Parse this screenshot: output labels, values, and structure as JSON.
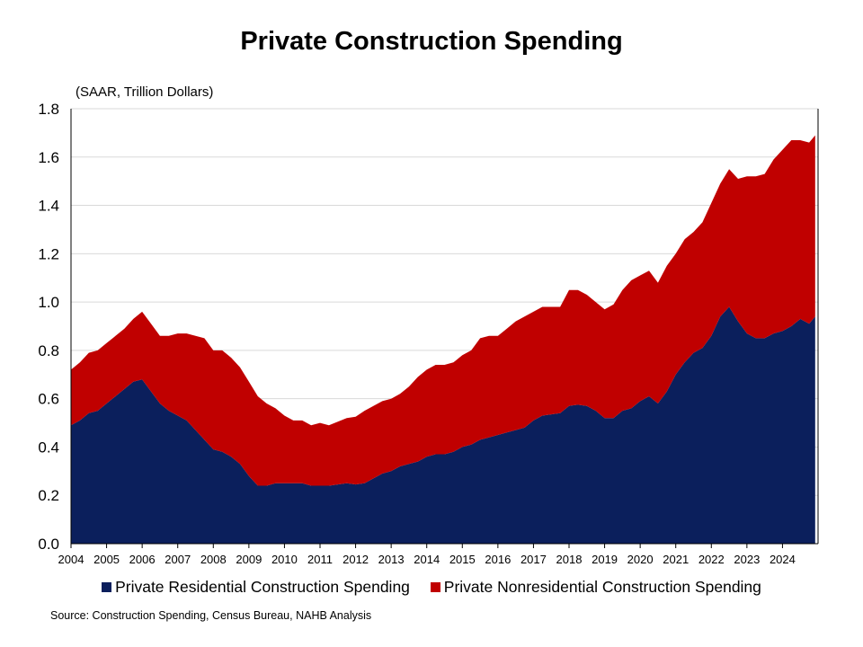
{
  "chart_data": {
    "type": "area",
    "stacked": true,
    "title": "Private Construction Spending",
    "ylabel": "(SAAR, Trillion Dollars)",
    "ylim": [
      0,
      1.8
    ],
    "yticks": [
      "0.0",
      "0.2",
      "0.4",
      "0.6",
      "0.8",
      "1.0",
      "1.2",
      "1.4",
      "1.6",
      "1.8"
    ],
    "xticks": [
      "2004",
      "2005",
      "2006",
      "2007",
      "2008",
      "2009",
      "2010",
      "2011",
      "2012",
      "2013",
      "2014",
      "2015",
      "2016",
      "2017",
      "2018",
      "2019",
      "2020",
      "2021",
      "2022",
      "2023",
      "2024"
    ],
    "grid": true,
    "legend_position": "bottom",
    "x": [
      2004.0,
      2004.25,
      2004.5,
      2004.75,
      2005.0,
      2005.25,
      2005.5,
      2005.75,
      2006.0,
      2006.25,
      2006.5,
      2006.75,
      2007.0,
      2007.25,
      2007.5,
      2007.75,
      2008.0,
      2008.25,
      2008.5,
      2008.75,
      2009.0,
      2009.25,
      2009.5,
      2009.75,
      2010.0,
      2010.25,
      2010.5,
      2010.75,
      2011.0,
      2011.25,
      2011.5,
      2011.75,
      2012.0,
      2012.25,
      2012.5,
      2012.75,
      2013.0,
      2013.25,
      2013.5,
      2013.75,
      2014.0,
      2014.25,
      2014.5,
      2014.75,
      2015.0,
      2015.25,
      2015.5,
      2015.75,
      2016.0,
      2016.25,
      2016.5,
      2016.75,
      2017.0,
      2017.25,
      2017.5,
      2017.75,
      2018.0,
      2018.25,
      2018.5,
      2018.75,
      2019.0,
      2019.25,
      2019.5,
      2019.75,
      2020.0,
      2020.25,
      2020.5,
      2020.75,
      2021.0,
      2021.25,
      2021.5,
      2021.75,
      2022.0,
      2022.25,
      2022.5,
      2022.75,
      2023.0,
      2023.25,
      2023.5,
      2023.75,
      2024.0,
      2024.25,
      2024.5,
      2024.75,
      2024.92
    ],
    "series": [
      {
        "name": "Private Residential Construction Spending",
        "color": "#0b1f5c",
        "values": [
          0.49,
          0.51,
          0.54,
          0.55,
          0.58,
          0.61,
          0.64,
          0.67,
          0.68,
          0.63,
          0.58,
          0.55,
          0.53,
          0.51,
          0.47,
          0.43,
          0.39,
          0.38,
          0.36,
          0.33,
          0.28,
          0.24,
          0.24,
          0.25,
          0.25,
          0.25,
          0.25,
          0.24,
          0.24,
          0.24,
          0.245,
          0.25,
          0.245,
          0.25,
          0.27,
          0.29,
          0.3,
          0.32,
          0.33,
          0.34,
          0.36,
          0.37,
          0.37,
          0.38,
          0.4,
          0.41,
          0.43,
          0.44,
          0.45,
          0.46,
          0.47,
          0.48,
          0.51,
          0.53,
          0.535,
          0.54,
          0.57,
          0.575,
          0.57,
          0.55,
          0.52,
          0.52,
          0.55,
          0.56,
          0.59,
          0.61,
          0.58,
          0.63,
          0.7,
          0.75,
          0.79,
          0.81,
          0.86,
          0.94,
          0.98,
          0.92,
          0.87,
          0.85,
          0.85,
          0.87,
          0.88,
          0.9,
          0.93,
          0.91,
          0.94
        ]
      },
      {
        "name": "Private Nonresidential Construction Spending",
        "color": "#c00000",
        "values": [
          0.23,
          0.24,
          0.25,
          0.25,
          0.25,
          0.25,
          0.25,
          0.26,
          0.28,
          0.28,
          0.28,
          0.31,
          0.34,
          0.36,
          0.39,
          0.42,
          0.41,
          0.42,
          0.41,
          0.4,
          0.39,
          0.37,
          0.34,
          0.31,
          0.28,
          0.26,
          0.26,
          0.25,
          0.26,
          0.25,
          0.26,
          0.27,
          0.28,
          0.3,
          0.3,
          0.3,
          0.3,
          0.3,
          0.32,
          0.35,
          0.36,
          0.37,
          0.37,
          0.37,
          0.38,
          0.39,
          0.42,
          0.42,
          0.41,
          0.43,
          0.45,
          0.46,
          0.45,
          0.45,
          0.445,
          0.44,
          0.48,
          0.475,
          0.46,
          0.45,
          0.45,
          0.47,
          0.5,
          0.53,
          0.52,
          0.52,
          0.5,
          0.52,
          0.5,
          0.51,
          0.5,
          0.52,
          0.55,
          0.55,
          0.57,
          0.59,
          0.65,
          0.67,
          0.68,
          0.72,
          0.75,
          0.77,
          0.74,
          0.75,
          0.75
        ]
      }
    ]
  },
  "source_note": "Source: Construction Spending, Census Bureau, NAHB Analysis"
}
